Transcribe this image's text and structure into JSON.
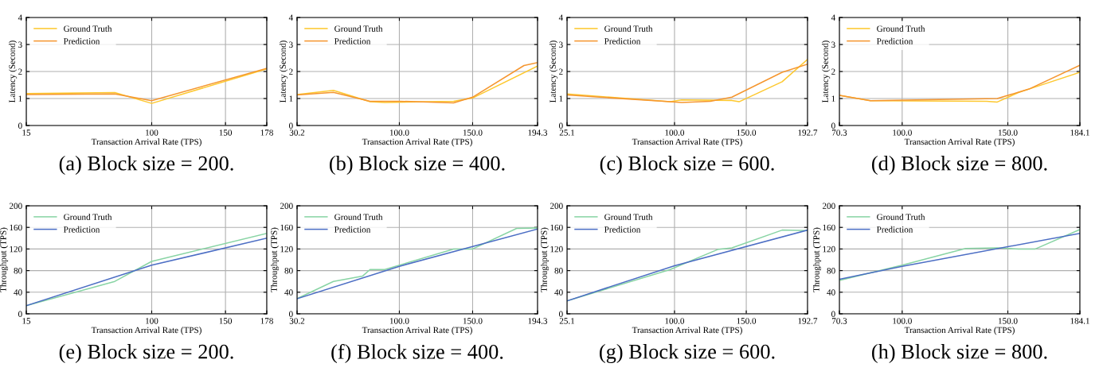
{
  "chart_data": [
    {
      "type": "line",
      "title": "(a) Block size = 200.",
      "xlabel": "Transaction Arrival Rate (TPS)",
      "ylabel": "Latency (Second)",
      "xlim": [
        15,
        178
      ],
      "xticks": [
        15,
        100,
        150,
        178
      ],
      "ylim": [
        0,
        4
      ],
      "yticks": [
        0,
        1,
        2,
        3,
        4
      ],
      "grid": true,
      "legend": "top left",
      "series": [
        {
          "name": "Ground Truth",
          "color": "#fdc82f",
          "x": [
            15,
            75,
            100,
            178
          ],
          "values": [
            1.18,
            1.22,
            0.82,
            2.1
          ]
        },
        {
          "name": "Prediction",
          "color": "#f5962f",
          "x": [
            15,
            75,
            100,
            178
          ],
          "values": [
            1.15,
            1.17,
            0.92,
            2.12
          ]
        }
      ]
    },
    {
      "type": "line",
      "title": "(b) Block size = 400.",
      "xlabel": "Transaction Arrival Rate (TPS)",
      "ylabel": "Latency (Second)",
      "xlim": [
        30.2,
        194.3
      ],
      "xticks": [
        {
          "value": 30.2,
          "label": "30.2"
        },
        {
          "value": 100,
          "label": "100.0"
        },
        {
          "value": 150,
          "label": "150.0"
        },
        {
          "value": 194.3,
          "label": "194.3"
        }
      ],
      "ylim": [
        0,
        4
      ],
      "yticks": [
        0,
        1,
        2,
        3,
        4
      ],
      "grid": true,
      "legend": "top left",
      "series": [
        {
          "name": "Ground Truth",
          "color": "#fdc82f",
          "x": [
            30.2,
            55,
            80,
            90,
            137,
            150,
            194.3
          ],
          "values": [
            1.15,
            1.3,
            0.88,
            0.85,
            0.9,
            1.02,
            2.2
          ]
        },
        {
          "name": "Prediction",
          "color": "#f5962f",
          "x": [
            30.2,
            55,
            80,
            100,
            137,
            150,
            185,
            194.3
          ],
          "values": [
            1.13,
            1.23,
            0.9,
            0.9,
            0.84,
            1.05,
            2.22,
            2.33
          ]
        }
      ]
    },
    {
      "type": "line",
      "title": "(c) Block size = 600.",
      "xlabel": "Transaction Arrival Rate (TPS)",
      "ylabel": "Latency (Second)",
      "xlim": [
        25.1,
        192.7
      ],
      "xticks": [
        {
          "value": 25.1,
          "label": "25.1"
        },
        {
          "value": 100,
          "label": "100.0"
        },
        {
          "value": 150,
          "label": "150.0"
        },
        {
          "value": 192.7,
          "label": "192.7"
        }
      ],
      "ylim": [
        0,
        4
      ],
      "yticks": [
        0,
        1,
        2,
        3,
        4
      ],
      "grid": true,
      "legend": "top left",
      "series": [
        {
          "name": "Ground Truth",
          "color": "#fdc82f",
          "x": [
            25.1,
            97,
            105,
            140,
            145,
            175,
            192.7
          ],
          "values": [
            1.17,
            0.88,
            0.95,
            0.93,
            0.88,
            1.62,
            2.45
          ]
        },
        {
          "name": "Prediction",
          "color": "#f5962f",
          "x": [
            25.1,
            97,
            105,
            125,
            140,
            175,
            192.7
          ],
          "values": [
            1.13,
            0.88,
            0.85,
            0.9,
            1.05,
            1.97,
            2.27
          ]
        }
      ]
    },
    {
      "type": "line",
      "title": "(d) Block size = 800.",
      "xlabel": "Transaction Arrival Rate (TPS)",
      "ylabel": "Latency (Second)",
      "xlim": [
        70.3,
        184.1
      ],
      "xticks": [
        {
          "value": 70.3,
          "label": "70.3"
        },
        {
          "value": 100,
          "label": "100.0"
        },
        {
          "value": 150,
          "label": "150.0"
        },
        {
          "value": 184.1,
          "label": "184.1"
        }
      ],
      "ylim": [
        0,
        4
      ],
      "yticks": [
        0,
        1,
        2,
        3,
        4
      ],
      "grid": true,
      "legend": "top left",
      "series": [
        {
          "name": "Ground Truth",
          "color": "#fdc82f",
          "x": [
            70.3,
            85,
            140,
            145,
            155,
            160,
            184.1
          ],
          "values": [
            1.12,
            0.92,
            0.9,
            0.87,
            1.22,
            1.35,
            1.97
          ]
        },
        {
          "name": "Prediction",
          "color": "#f5962f",
          "x": [
            70.3,
            85,
            145,
            160,
            184.1
          ],
          "values": [
            1.12,
            0.92,
            1.0,
            1.35,
            2.23
          ]
        }
      ]
    },
    {
      "type": "line",
      "title": "(e) Block size = 200.",
      "xlabel": "Transaction Arrival Rate (TPS)",
      "ylabel": "Throughput (TPS)",
      "xlim": [
        15,
        178
      ],
      "xticks": [
        15,
        100,
        150,
        178
      ],
      "ylim": [
        0,
        200
      ],
      "yticks": [
        0,
        40,
        80,
        120,
        160,
        200
      ],
      "grid": true,
      "legend": "top left",
      "series": [
        {
          "name": "Ground Truth",
          "color": "#88d4a4",
          "x": [
            15,
            75,
            100,
            178
          ],
          "values": [
            15,
            60,
            97,
            149
          ]
        },
        {
          "name": "Prediction",
          "color": "#4c6ec4",
          "x": [
            15,
            100,
            178
          ],
          "values": [
            15,
            90,
            140
          ]
        }
      ]
    },
    {
      "type": "line",
      "title": "(f) Block size = 400.",
      "xlabel": "Transaction Arrival Rate (TPS)",
      "ylabel": "Throughput (TPS)",
      "xlim": [
        30.2,
        194.3
      ],
      "xticks": [
        {
          "value": 30.2,
          "label": "30.2"
        },
        {
          "value": 100,
          "label": "100.0"
        },
        {
          "value": 150,
          "label": "150.0"
        },
        {
          "value": 194.3,
          "label": "194.3"
        }
      ],
      "ylim": [
        0,
        200
      ],
      "yticks": [
        0,
        40,
        80,
        120,
        160,
        200
      ],
      "grid": true,
      "legend": "top left",
      "series": [
        {
          "name": "Ground Truth",
          "color": "#88d4a4",
          "x": [
            30.2,
            55,
            75,
            80,
            90,
            137,
            150,
            180,
            194.3
          ],
          "values": [
            28,
            60,
            70,
            82,
            82,
            120,
            120,
            158,
            159
          ]
        },
        {
          "name": "Prediction",
          "color": "#4c6ec4",
          "x": [
            30.2,
            100,
            194.3
          ],
          "values": [
            28,
            88,
            157
          ]
        }
      ]
    },
    {
      "type": "line",
      "title": "(g) Block size = 600.",
      "xlabel": "Transaction Arrival Rate (TPS)",
      "ylabel": "Throughput (TPS)",
      "xlim": [
        25.1,
        192.7
      ],
      "xticks": [
        {
          "value": 25.1,
          "label": "25.1"
        },
        {
          "value": 100,
          "label": "100.0"
        },
        {
          "value": 150,
          "label": "150.0"
        },
        {
          "value": 192.7,
          "label": "192.7"
        }
      ],
      "ylim": [
        0,
        200
      ],
      "yticks": [
        0,
        40,
        80,
        120,
        160,
        200
      ],
      "grid": true,
      "legend": "top left",
      "series": [
        {
          "name": "Ground Truth",
          "color": "#88d4a4",
          "x": [
            25.1,
            97,
            130,
            140,
            175,
            192.7
          ],
          "values": [
            24,
            82,
            119,
            122,
            155,
            154
          ]
        },
        {
          "name": "Prediction",
          "color": "#4c6ec4",
          "x": [
            25.1,
            100,
            192.7
          ],
          "values": [
            24,
            89,
            155
          ]
        }
      ]
    },
    {
      "type": "line",
      "title": "(h) Block size = 800.",
      "xlabel": "Transaction Arrival Rate (TPS)",
      "ylabel": "Throughput (TPS)",
      "xlim": [
        70.3,
        184.1
      ],
      "xticks": [
        {
          "value": 70.3,
          "label": "70.3"
        },
        {
          "value": 100,
          "label": "100.0"
        },
        {
          "value": 150,
          "label": "150.0"
        },
        {
          "value": 184.1,
          "label": "184.1"
        }
      ],
      "ylim": [
        0,
        200
      ],
      "yticks": [
        0,
        40,
        80,
        120,
        160,
        200
      ],
      "grid": true,
      "legend": "top left",
      "series": [
        {
          "name": "Ground Truth",
          "color": "#88d4a4",
          "x": [
            70.3,
            100,
            130,
            145,
            155,
            163,
            184.1
          ],
          "values": [
            62,
            90,
            121,
            122,
            120,
            120,
            156
          ]
        },
        {
          "name": "Prediction",
          "color": "#4c6ec4",
          "x": [
            70.3,
            100,
            184.1
          ],
          "values": [
            64,
            88,
            149
          ]
        }
      ]
    }
  ]
}
